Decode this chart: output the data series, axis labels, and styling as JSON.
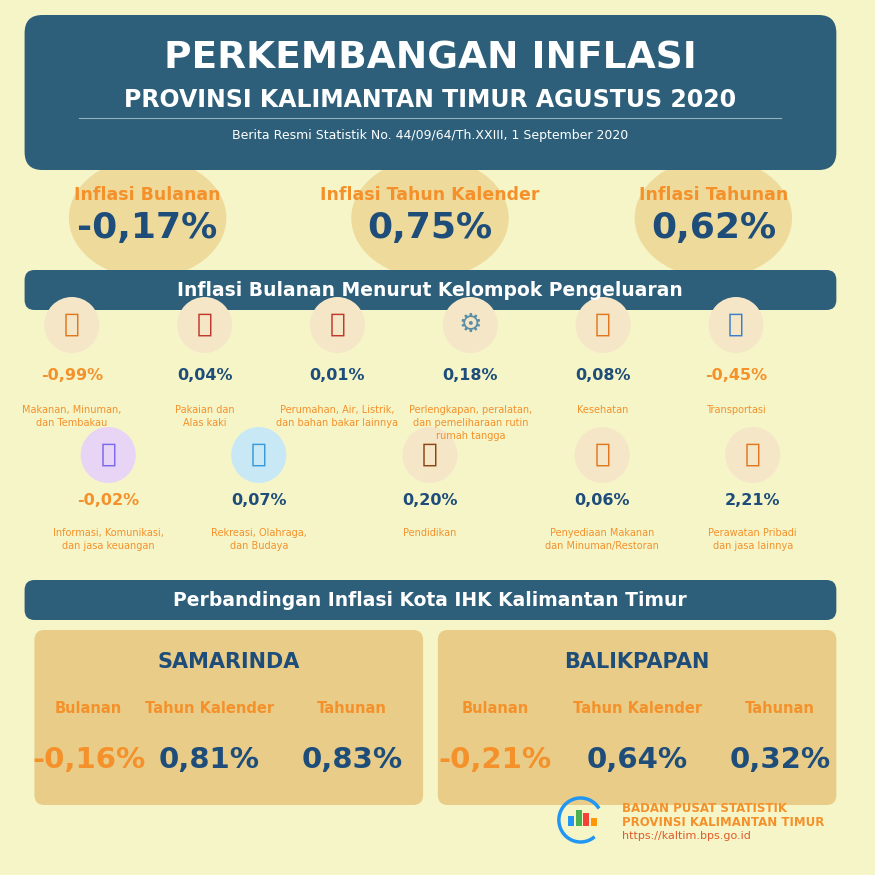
{
  "bg_color": "#f5f5c8",
  "header_bg": "#2d5f7a",
  "header_title1": "PERKEMBANGAN INFLASI",
  "header_title2": "PROVINSI KALIMANTAN TIMUR AGUSTUS 2020",
  "header_subtitle": "Berita Resmi Statistik No. 44/09/64/Th.XXIII, 1 September 2020",
  "inflasi_labels": [
    "Inflasi Bulanan",
    "Inflasi Tahun Kalender",
    "Inflasi Tahunan"
  ],
  "inflasi_values": [
    "-0,17%",
    "0,75%",
    "0,62%"
  ],
  "inflasi_label_color": "#f4912a",
  "inflasi_value_color": "#1e4d7a",
  "section1_title": "Inflasi Bulanan Menurut Kelompok Pengeluaran",
  "section2_title": "Perbandingan Inflasi Kota IHK Kalimantan Timur",
  "row1_values": [
    "-0,99%",
    "0,04%",
    "0,01%",
    "0,18%",
    "0,08%",
    "-0,45%"
  ],
  "row1_labels": [
    "Makanan, Minuman,\ndan Tembakau",
    "Pakaian dan\nAlas kaki",
    "Perumahan, Air, Listrik,\ndan bahan bakar lainnya",
    "Perlengkapan, peralatan,\ndan pemeliharaan rutin\nrumah tangga",
    "Kesehatan",
    "Transportasi"
  ],
  "row2_values": [
    "-0,02%",
    "0,07%",
    "0,20%",
    "0,06%",
    "2,21%"
  ],
  "row2_labels": [
    "Informasi, Komunikasi,\ndan jasa keuangan",
    "Rekreasi, Olahraga,\ndan Budaya",
    "Pendidikan",
    "Penyediaan Makanan\ndan Minuman/Restoran",
    "Perawatan Pribadi\ndan jasa lainnya"
  ],
  "value_color_neg": "#f4912a",
  "value_color_pos": "#1e4d7a",
  "samarinda_title": "SAMARINDA",
  "balikpapan_title": "BALIKPAPAN",
  "city_labels": [
    "Bulanan",
    "Tahun Kalender",
    "Tahunan"
  ],
  "samarinda_values": [
    "-0,16%",
    "0,81%",
    "0,83%"
  ],
  "balikpapan_values": [
    "-0,21%",
    "0,64%",
    "0,32%"
  ],
  "city_label_color": "#f4912a",
  "city_value_color": "#1e4d7a",
  "section_header_color": "#2d5f7a",
  "box_bg": "#e8cc88",
  "circle_color": "#e8c070",
  "bps_name_color": "#f4912a",
  "bps_url_color": "#e05c2a"
}
